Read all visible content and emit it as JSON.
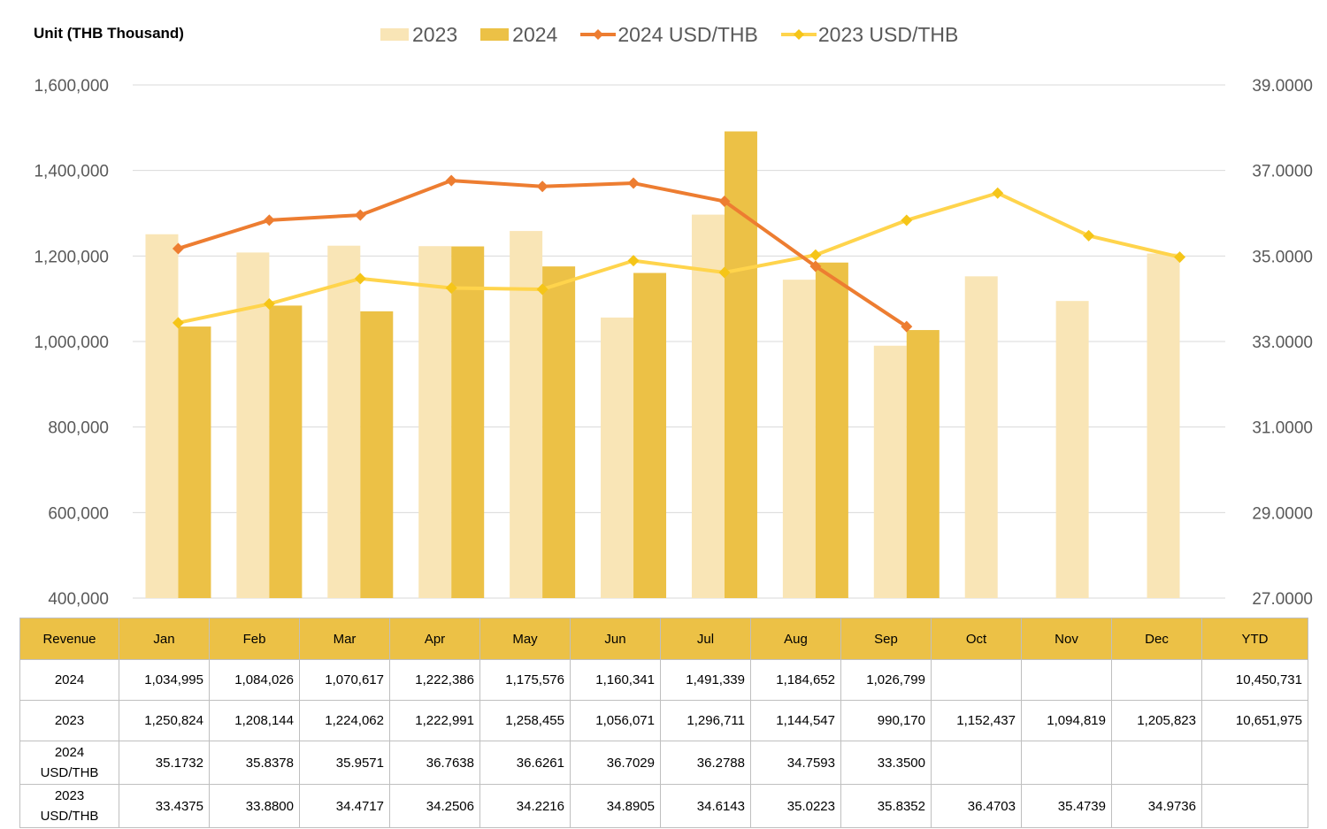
{
  "unit_label": "Unit (THB  Thousand)",
  "legend": [
    {
      "label": "2023",
      "kind": "bar",
      "color": "#f9e5b6"
    },
    {
      "label": "2024",
      "kind": "bar",
      "color": "#ecc146"
    },
    {
      "label": "2024 USD/THB",
      "kind": "line",
      "color": "#ed7d31"
    },
    {
      "label": "2023 USD/THB",
      "kind": "line",
      "color": "#ffd44c"
    }
  ],
  "chart_data": {
    "type": "bar",
    "combo": "bar+line (dual axis)",
    "categories": [
      "Jan",
      "Feb",
      "Mar",
      "Apr",
      "May",
      "Jun",
      "Jul",
      "Aug",
      "Sep",
      "Oct",
      "Nov",
      "Dec"
    ],
    "series": [
      {
        "name": "2023",
        "type": "bar",
        "axis": "left",
        "color": "#f9e5b6",
        "values": [
          1250824,
          1208144,
          1224062,
          1222991,
          1258455,
          1056071,
          1296711,
          1144547,
          990170,
          1152437,
          1094819,
          1205823
        ]
      },
      {
        "name": "2024",
        "type": "bar",
        "axis": "left",
        "color": "#ecc146",
        "values": [
          1034995,
          1084026,
          1070617,
          1222386,
          1175576,
          1160341,
          1491339,
          1184652,
          1026799,
          null,
          null,
          null
        ]
      },
      {
        "name": "2024 USD/THB",
        "type": "line",
        "axis": "right",
        "color": "#ed7d31",
        "marker": "diamond",
        "values": [
          35.1732,
          35.8378,
          35.9571,
          36.7638,
          36.6261,
          36.7029,
          36.2788,
          34.7593,
          33.35,
          null,
          null,
          null
        ]
      },
      {
        "name": "2023 USD/THB",
        "type": "line",
        "axis": "right",
        "color": "#ffd44c",
        "marker": "diamond",
        "values": [
          33.4375,
          33.88,
          34.4717,
          34.2506,
          34.2216,
          34.8905,
          34.6143,
          35.0223,
          35.8352,
          36.4703,
          35.4739,
          34.9736
        ]
      }
    ],
    "ylim_left": [
      400000,
      1600000
    ],
    "yticks_left": [
      "400,000",
      "600,000",
      "800,000",
      "1,000,000",
      "1,200,000",
      "1,400,000",
      "1,600,000"
    ],
    "ylim_right": [
      27,
      39
    ],
    "yticks_right": [
      "27.0000",
      "29.0000",
      "31.0000",
      "33.0000",
      "35.0000",
      "37.0000",
      "39.0000"
    ],
    "grid": true,
    "legend_position": "top"
  },
  "table": {
    "headers": [
      "Revenue",
      "Jan",
      "Feb",
      "Mar",
      "Apr",
      "May",
      "Jun",
      "Jul",
      "Aug",
      "Sep",
      "Oct",
      "Nov",
      "Dec",
      "YTD"
    ],
    "rows": [
      {
        "label": [
          "2024"
        ],
        "cells": [
          "1,034,995",
          "1,084,026",
          "1,070,617",
          "1,222,386",
          "1,175,576",
          "1,160,341",
          "1,491,339",
          "1,184,652",
          "1,026,799",
          "",
          "",
          "",
          "10,450,731"
        ]
      },
      {
        "label": [
          "2023"
        ],
        "cells": [
          "1,250,824",
          "1,208,144",
          "1,224,062",
          "1,222,991",
          "1,258,455",
          "1,056,071",
          "1,296,711",
          "1,144,547",
          "990,170",
          "1,152,437",
          "1,094,819",
          "1,205,823",
          "10,651,975"
        ]
      },
      {
        "label": [
          "2024",
          "USD/THB"
        ],
        "cells": [
          "35.1732",
          "35.8378",
          "35.9571",
          "36.7638",
          "36.6261",
          "36.7029",
          "36.2788",
          "34.7593",
          "33.3500",
          "",
          "",
          "",
          ""
        ]
      },
      {
        "label": [
          "2023",
          "USD/THB"
        ],
        "cells": [
          "33.4375",
          "33.8800",
          "34.4717",
          "34.2506",
          "34.2216",
          "34.8905",
          "34.6143",
          "35.0223",
          "35.8352",
          "36.4703",
          "35.4739",
          "34.9736",
          ""
        ]
      }
    ]
  }
}
